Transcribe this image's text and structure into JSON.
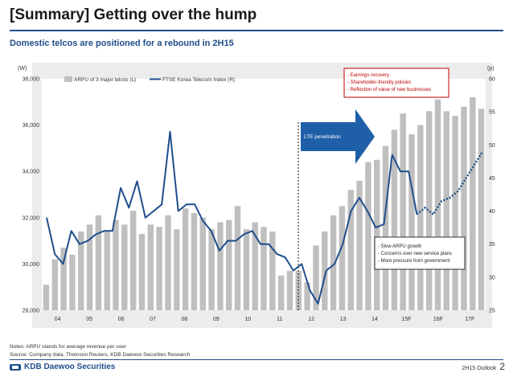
{
  "header": {
    "title": "[Summary] Getting over the hump",
    "subtitle": "Domestic telcos are positioned for a rebound in 2H15"
  },
  "footer": {
    "notes": "Notes: ARPU stands for average revenue per user",
    "source": "Source: Company data, Thomson Reuters, KDB Daewoo Securities Research",
    "logo": "KDB Daewoo Securities",
    "doc": "2H15 Outlook",
    "page": "2"
  },
  "colors": {
    "bar": "#bfbfbf",
    "line": "#1f4e8c",
    "arrow": "#1f5fa8",
    "box": "#c00000",
    "accent": "#1f4e8c"
  },
  "chart_data": {
    "type": "bar+line",
    "left_unit": "(W)",
    "right_unit": "(p)",
    "left_ylim": [
      28000,
      38000
    ],
    "left_ticks": [
      28000,
      30000,
      32000,
      34000,
      36000,
      38000
    ],
    "left_tick_labels": [
      "28,000",
      "30,000",
      "32,000",
      "34,000",
      "36,000",
      "38,000"
    ],
    "right_ylim": [
      25,
      60
    ],
    "right_ticks": [
      25,
      30,
      35,
      40,
      45,
      50,
      55,
      60
    ],
    "right_tick_labels": [
      "25",
      "30",
      "35",
      "40",
      "45",
      "50",
      "55",
      "60"
    ],
    "x_labels": [
      "04",
      "05",
      "06",
      "07",
      "08",
      "09",
      "10",
      "11",
      "12",
      "13",
      "14",
      "15F",
      "16F",
      "17F"
    ],
    "legend": {
      "bar": "ARPU of 3 major telcos (L)",
      "line": "FTSE Korea Telecom Index (R)"
    },
    "series": [
      {
        "name": "ARPU of 3 major telcos (L)",
        "type": "bar",
        "values": [
          29100,
          30200,
          30700,
          30400,
          31400,
          31700,
          32100,
          31400,
          31900,
          31700,
          32300,
          31300,
          31700,
          31600,
          32100,
          31500,
          32400,
          32200,
          32000,
          31500,
          31800,
          31900,
          32500,
          31500,
          31800,
          31600,
          31400,
          29500,
          29700,
          29700,
          29200,
          30800,
          31400,
          32100,
          32500,
          33200,
          33600,
          34400,
          34500,
          35100,
          35800,
          36500,
          35600,
          36000,
          36600,
          37100,
          36600,
          36400,
          36800,
          37200,
          36700
        ]
      },
      {
        "name": "FTSE Korea Telecom Index (R)",
        "type": "line",
        "values": [
          39,
          33.5,
          32,
          37,
          35,
          35.5,
          36.5,
          37,
          37,
          43.5,
          40.5,
          44.5,
          39,
          40,
          41,
          52,
          40,
          41,
          41,
          38.5,
          37,
          34,
          35.5,
          35.5,
          36.5,
          37,
          35,
          35,
          33.5,
          33,
          31,
          32,
          28,
          26,
          31,
          32,
          35,
          40,
          42,
          40,
          37.5,
          38,
          48.5,
          46,
          46,
          39.5
        ],
        "forecast_values": [
          40.5,
          39.5,
          41.5,
          42,
          43,
          45,
          47,
          49
        ]
      }
    ],
    "annotations": {
      "lte_label": "LTE penetration",
      "top_box": [
        "- Earnings recovery",
        "- Shareholder-friendly policies",
        "- Reflection of value of new businesses"
      ],
      "bottom_box": [
        "- Slow ARPU growth",
        "- Concerns over new service plans",
        "- More pressure from government"
      ]
    }
  }
}
